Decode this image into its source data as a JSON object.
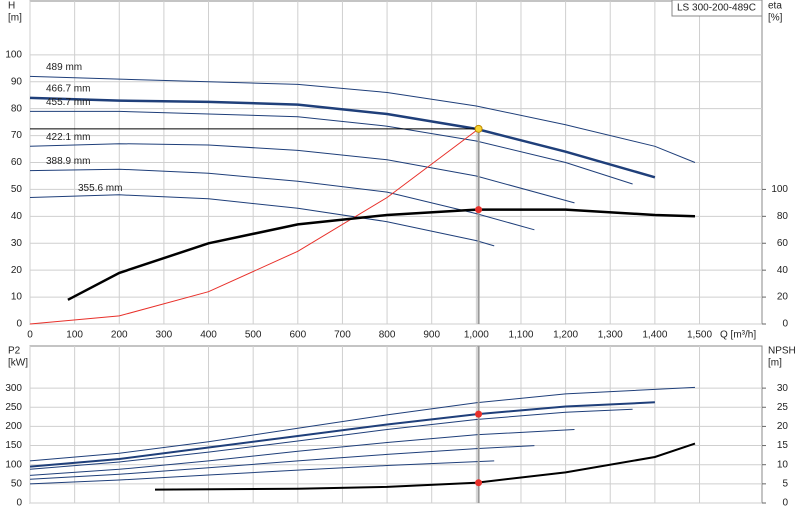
{
  "chart_data": [
    {
      "type": "line",
      "title": "LS 300-200-489C",
      "ylabel": [
        "H",
        "[m]"
      ],
      "y2label": [
        "eta",
        "[%]"
      ],
      "xlabel": "Q [m³/h]",
      "xlim": [
        0,
        1640
      ],
      "xticks": [
        0,
        100,
        200,
        300,
        400,
        500,
        600,
        700,
        800,
        900,
        {
          "value": 1000,
          "label": "1,000"
        },
        {
          "value": 1100,
          "label": "1,100"
        },
        {
          "value": 1200,
          "label": "1,200"
        },
        {
          "value": 1300,
          "label": "1,300"
        },
        {
          "value": 1400,
          "label": "1,400"
        },
        {
          "value": 1500,
          "label": "1,500"
        }
      ],
      "ylim": [
        0,
        120
      ],
      "yticks": [
        0,
        10,
        20,
        30,
        40,
        50,
        60,
        70,
        80,
        90,
        100
      ],
      "y2lim": [
        0,
        240
      ],
      "y2ticks": [
        0,
        20,
        40,
        60,
        80,
        100
      ],
      "grid": true,
      "series": [
        {
          "name": "489 mm",
          "color": "#1f3f7a",
          "width": 1,
          "x": [
            0,
            200,
            400,
            600,
            800,
            1000,
            1200,
            1400,
            1490
          ],
          "values": [
            92,
            91,
            90,
            89,
            86,
            81,
            74,
            66,
            60
          ]
        },
        {
          "name": "466.7 mm",
          "color": "#1f3f7a",
          "width": 2.5,
          "x": [
            0,
            200,
            400,
            600,
            800,
            1000,
            1200,
            1400
          ],
          "values": [
            84,
            83,
            82.5,
            81.5,
            78,
            72.5,
            64,
            54.5
          ]
        },
        {
          "name": "455.7 mm",
          "color": "#1f3f7a",
          "width": 1,
          "x": [
            0,
            200,
            400,
            600,
            800,
            1000,
            1200,
            1350
          ],
          "values": [
            79,
            79,
            78,
            77,
            73.5,
            68,
            60,
            52
          ]
        },
        {
          "name": "422.1 mm",
          "color": "#1f3f7a",
          "width": 1,
          "x": [
            0,
            200,
            400,
            600,
            800,
            1000,
            1220
          ],
          "values": [
            66,
            67,
            66.5,
            64.5,
            61,
            55,
            45
          ]
        },
        {
          "name": "388.9 mm",
          "color": "#1f3f7a",
          "width": 1,
          "x": [
            0,
            200,
            400,
            600,
            800,
            1000,
            1130
          ],
          "values": [
            57,
            57.5,
            56,
            53,
            49,
            41,
            35
          ]
        },
        {
          "name": "355.6 mm",
          "color": "#1f3f7a",
          "width": 1,
          "x": [
            0,
            200,
            400,
            600,
            800,
            1000,
            1040
          ],
          "values": [
            47,
            48,
            46.5,
            43,
            38,
            31,
            29
          ]
        },
        {
          "color": "#e8302a",
          "width": 1,
          "x": [
            0,
            200,
            400,
            600,
            800,
            1005
          ],
          "values": [
            0,
            3,
            12,
            27,
            47,
            72.5
          ]
        },
        {
          "color": "#000000",
          "width": 2.5,
          "axis": "y2",
          "x": [
            85,
            200,
            400,
            600,
            800,
            1000,
            1200,
            1400,
            1490
          ],
          "values": [
            18,
            38,
            60,
            74,
            81,
            85,
            85,
            81,
            80
          ]
        }
      ],
      "points": [
        {
          "x": 1005,
          "y": 72.5,
          "color": "#f7d433"
        },
        {
          "x": 1005,
          "y": 85,
          "color": "#e8302a",
          "axis": "y2"
        }
      ]
    },
    {
      "type": "line",
      "ylabel": [
        "P2",
        "[kW]"
      ],
      "y2label": [
        "NPSH",
        "[m]"
      ],
      "xlim": [
        0,
        1640
      ],
      "ylim": [
        0,
        410
      ],
      "yticks": [
        0,
        50,
        100,
        150,
        200,
        250,
        300
      ],
      "y2lim": [
        0,
        41
      ],
      "y2ticks": [
        0,
        5,
        10,
        15,
        20,
        25,
        30
      ],
      "grid": true,
      "series": [
        {
          "color": "#1f3f7a",
          "width": 1,
          "x": [
            0,
            200,
            400,
            600,
            800,
            1000,
            1200,
            1490
          ],
          "values": [
            110,
            130,
            160,
            195,
            230,
            262,
            285,
            302
          ]
        },
        {
          "color": "#1f3f7a",
          "width": 2,
          "x": [
            0,
            200,
            400,
            600,
            800,
            1000,
            1200,
            1400
          ],
          "values": [
            95,
            115,
            145,
            175,
            205,
            232,
            252,
            263
          ]
        },
        {
          "color": "#1f3f7a",
          "width": 1,
          "x": [
            0,
            200,
            400,
            600,
            800,
            1000,
            1200,
            1350
          ],
          "values": [
            88,
            107,
            133,
            162,
            192,
            218,
            237,
            245
          ]
        },
        {
          "color": "#1f3f7a",
          "width": 1,
          "x": [
            0,
            200,
            400,
            600,
            800,
            1000,
            1220
          ],
          "values": [
            72,
            88,
            110,
            135,
            158,
            178,
            192
          ]
        },
        {
          "color": "#1f3f7a",
          "width": 1,
          "x": [
            0,
            200,
            400,
            600,
            800,
            1000,
            1130
          ],
          "values": [
            62,
            75,
            92,
            110,
            127,
            142,
            150
          ]
        },
        {
          "color": "#1f3f7a",
          "width": 1,
          "x": [
            0,
            200,
            400,
            600,
            800,
            1040
          ],
          "values": [
            50,
            60,
            73,
            86,
            98,
            110
          ]
        },
        {
          "color": "#000000",
          "width": 2,
          "axis": "y2",
          "x": [
            280,
            600,
            800,
            1000,
            1200,
            1400,
            1490
          ],
          "values": [
            3.5,
            3.7,
            4.2,
            5.3,
            8,
            12,
            15.5
          ]
        }
      ],
      "points": [
        {
          "x": 1005,
          "y": 232,
          "color": "#e8302a"
        },
        {
          "x": 1005,
          "y": 5.3,
          "color": "#e8302a",
          "axis": "y2"
        }
      ]
    }
  ]
}
